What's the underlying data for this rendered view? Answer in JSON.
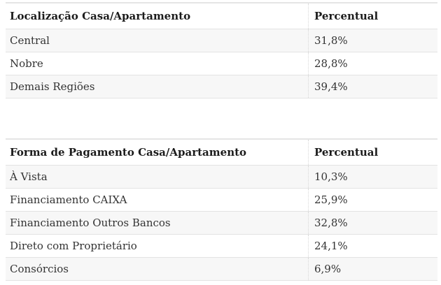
{
  "style": {
    "page_background": "#ffffff",
    "stripe_color": "#f7f7f7",
    "border_color": "#e3e3e3",
    "dotted_separator_color": "#d7d7d7",
    "header_text_color": "#1c1c1c",
    "cell_text_color": "#333333"
  },
  "tables": [
    {
      "id": "localizacao",
      "headers": [
        "Localização Casa/Apartamento",
        "Percentual"
      ],
      "rows": [
        [
          "Central",
          "31,8%"
        ],
        [
          "Nobre",
          "28,8%"
        ],
        [
          "Demais Regiões",
          "39,4%"
        ]
      ]
    },
    {
      "id": "forma-pagamento",
      "headers": [
        "Forma de Pagamento Casa/Apartamento",
        "Percentual"
      ],
      "rows": [
        [
          "À Vista",
          "10,3%"
        ],
        [
          "Financiamento CAIXA",
          "25,9%"
        ],
        [
          "Financiamento Outros Bancos",
          "32,8%"
        ],
        [
          "Direto com Proprietário",
          "24,1%"
        ],
        [
          "Consórcios",
          "6,9%"
        ]
      ]
    }
  ],
  "chart_data": [
    {
      "type": "table",
      "title": "Localização Casa/Apartamento",
      "categories": [
        "Central",
        "Nobre",
        "Demais Regiões"
      ],
      "values": [
        31.8,
        28.8,
        39.4
      ],
      "value_label": "Percentual",
      "value_unit": "%"
    },
    {
      "type": "table",
      "title": "Forma de Pagamento Casa/Apartamento",
      "categories": [
        "À Vista",
        "Financiamento CAIXA",
        "Financiamento Outros Bancos",
        "Direto com Proprietário",
        "Consórcios"
      ],
      "values": [
        10.3,
        25.9,
        32.8,
        24.1,
        6.9
      ],
      "value_label": "Percentual",
      "value_unit": "%"
    }
  ]
}
